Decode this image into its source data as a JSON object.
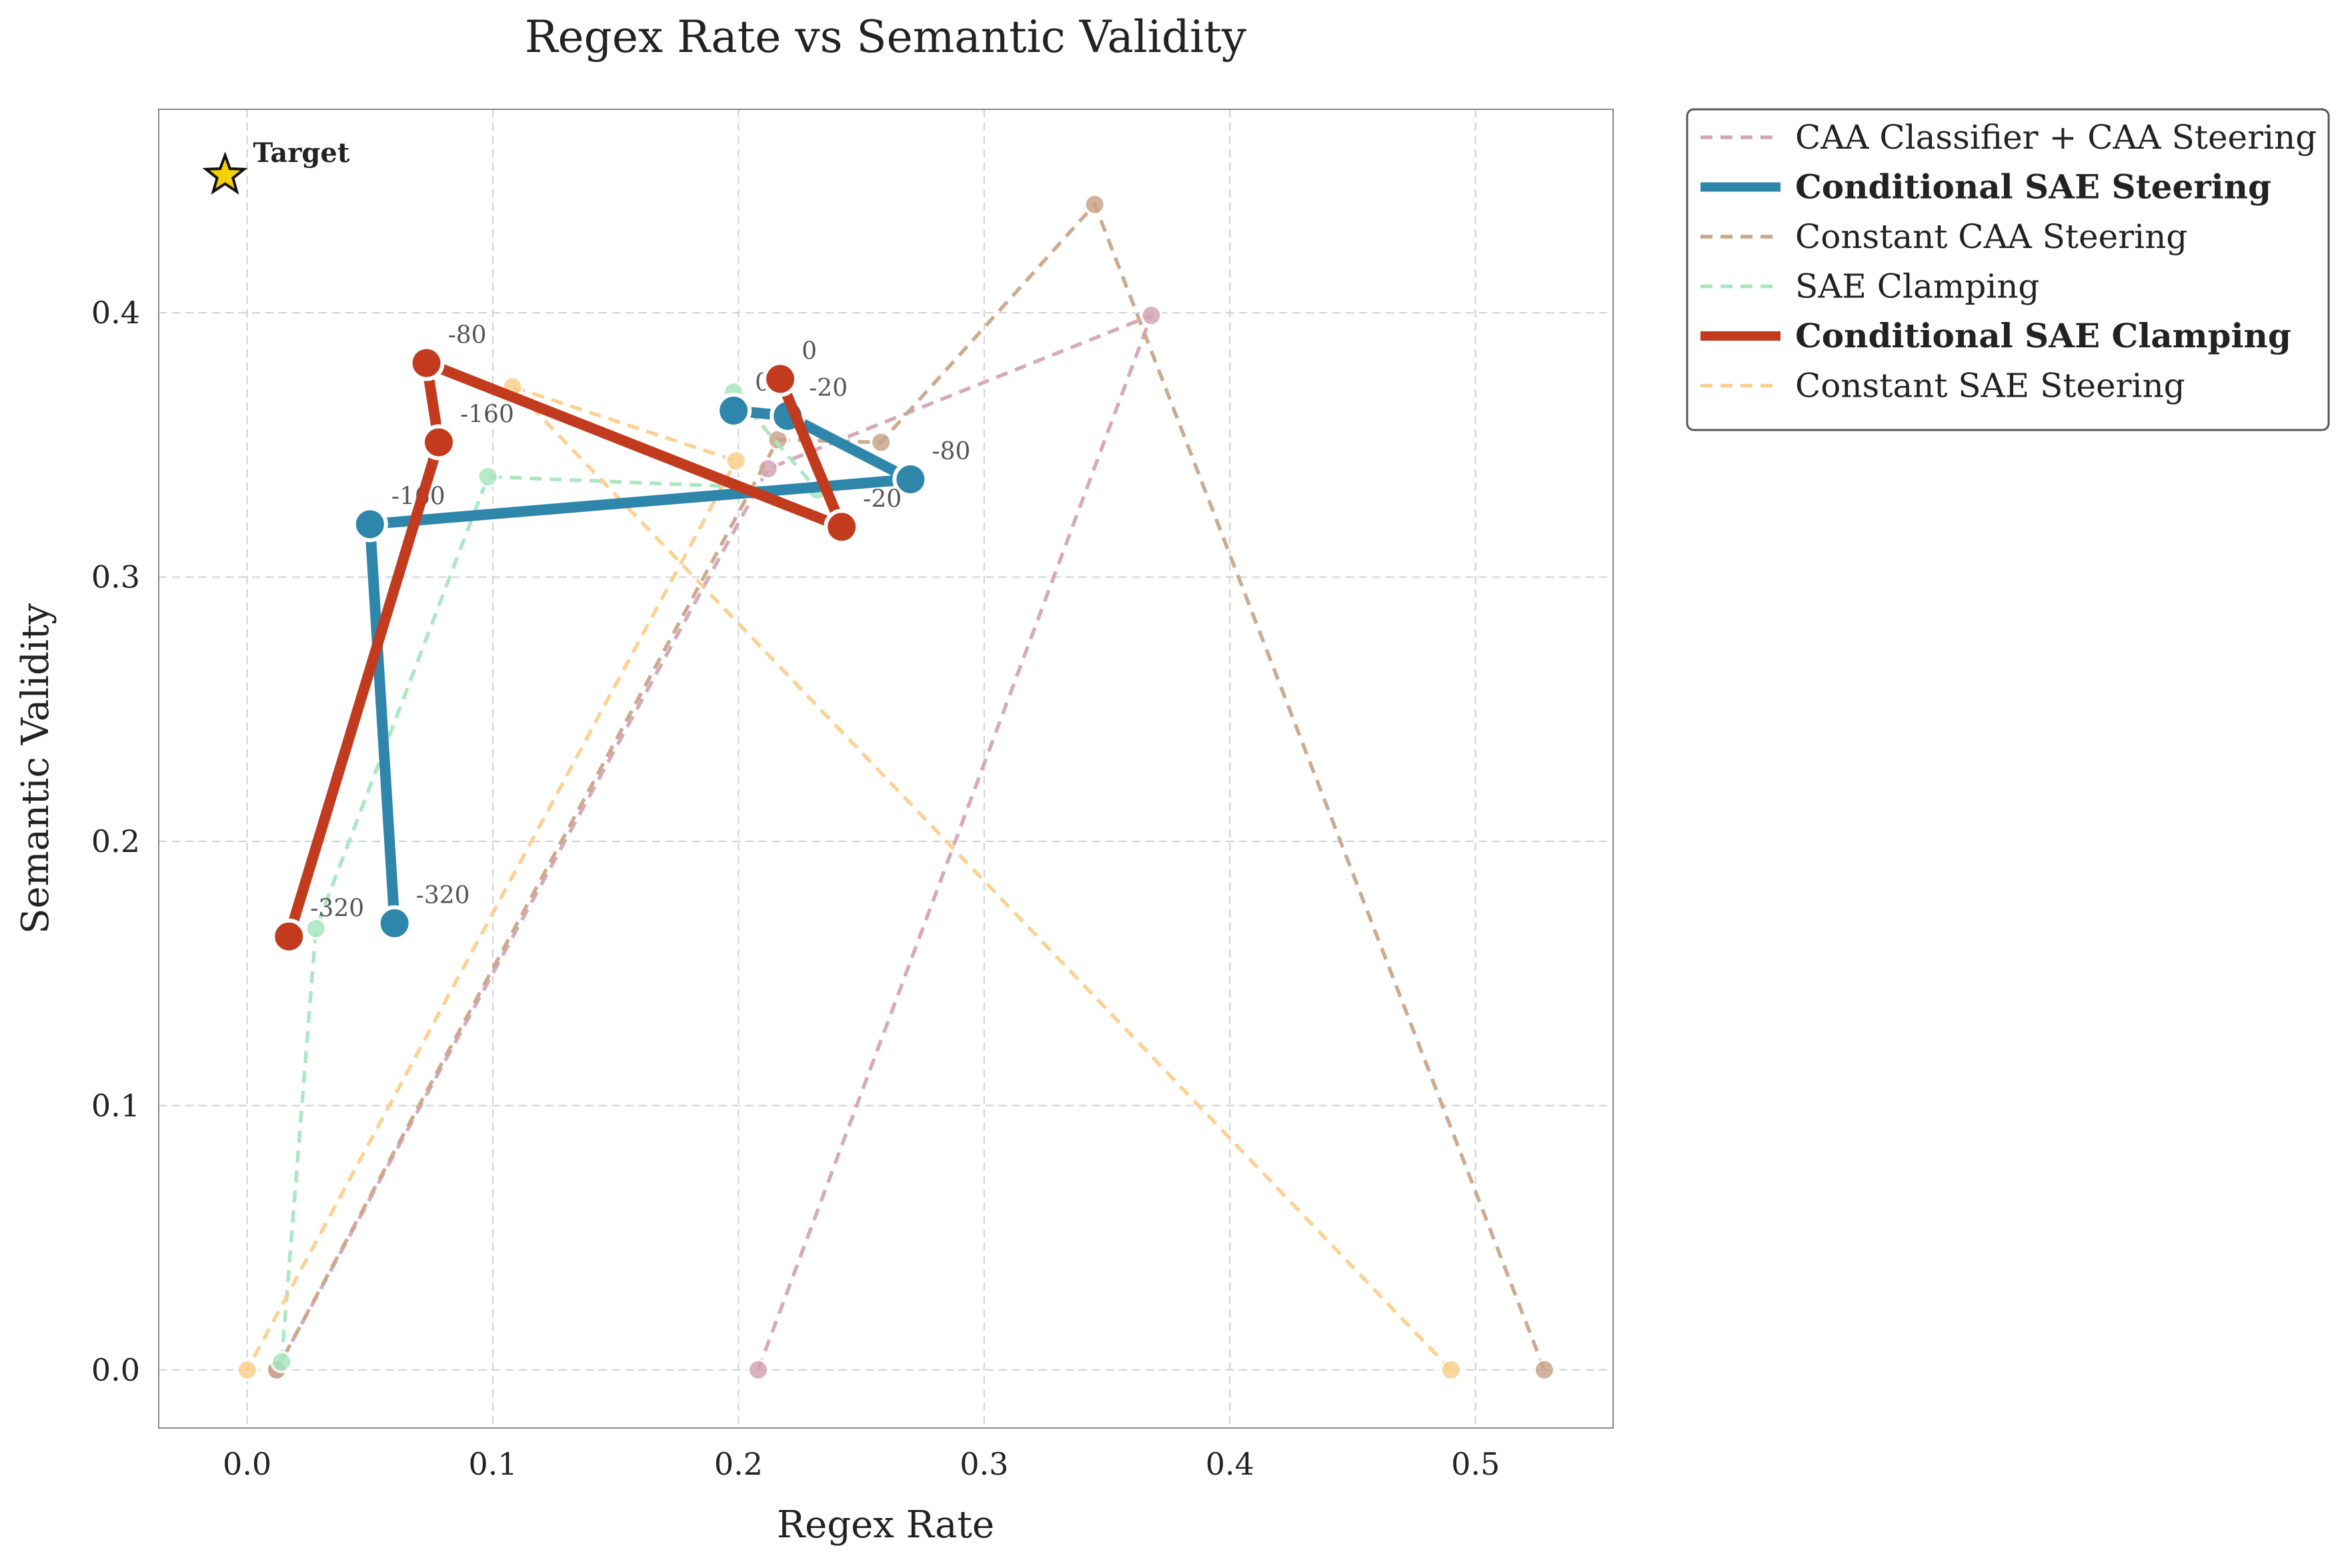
{
  "chart_data": {
    "type": "line",
    "title": "Regex Rate vs Semantic Validity",
    "xlabel": "Regex Rate",
    "ylabel": "Semantic Validity",
    "xlim": [
      -0.036,
      0.556
    ],
    "ylim": [
      -0.022,
      0.477
    ],
    "xticks": [
      "0.0",
      "0.1",
      "0.2",
      "0.3",
      "0.4",
      "0.5"
    ],
    "xtick_values": [
      0.0,
      0.1,
      0.2,
      0.3,
      0.4,
      0.5
    ],
    "yticks": [
      "0.0",
      "0.1",
      "0.2",
      "0.3",
      "0.4"
    ],
    "ytick_values": [
      0.0,
      0.1,
      0.2,
      0.3,
      0.4
    ],
    "grid": true,
    "legend_position": "outside-top-right",
    "target": {
      "label": "Target",
      "x": -0.009,
      "y": 0.452,
      "color": "#f5d000"
    },
    "series": [
      {
        "name": "CAA Classifier + CAA Steering",
        "style": "dashed",
        "emphasis": false,
        "color": "#d4a5b8",
        "x": [
          0.208,
          0.368,
          0.212,
          0.012
        ],
        "y": [
          0.0,
          0.399,
          0.341,
          0.0
        ],
        "labels": [
          "",
          "",
          "",
          ""
        ]
      },
      {
        "name": "Conditional SAE Steering",
        "style": "solid",
        "emphasis": true,
        "color": "#2e86ab",
        "x": [
          0.06,
          0.05,
          0.27,
          0.22,
          0.198
        ],
        "y": [
          0.169,
          0.32,
          0.337,
          0.361,
          0.363
        ],
        "labels": [
          "-320",
          "-160",
          "-80",
          "-20",
          "0"
        ]
      },
      {
        "name": "Constant CAA Steering",
        "style": "dashed",
        "emphasis": false,
        "color": "#c9a68a",
        "x": [
          0.528,
          0.345,
          0.258,
          0.216,
          0.012
        ],
        "y": [
          0.0,
          0.441,
          0.351,
          0.352,
          0.0
        ],
        "labels": [
          "",
          "",
          "",
          "",
          ""
        ]
      },
      {
        "name": "SAE Clamping",
        "style": "dashed",
        "emphasis": false,
        "color": "#a8e6c0",
        "x": [
          0.014,
          0.028,
          0.098,
          0.232,
          0.198
        ],
        "y": [
          0.003,
          0.167,
          0.338,
          0.333,
          0.37
        ],
        "labels": [
          "",
          "",
          "",
          "",
          ""
        ]
      },
      {
        "name": "Conditional SAE Clamping",
        "style": "solid",
        "emphasis": true,
        "color": "#c23b1f",
        "x": [
          0.017,
          0.078,
          0.073,
          0.242,
          0.217
        ],
        "y": [
          0.164,
          0.351,
          0.381,
          0.319,
          0.375
        ],
        "labels": [
          "-320",
          "-160",
          "-80",
          "-20",
          "0"
        ]
      },
      {
        "name": "Constant SAE Steering",
        "style": "dashed",
        "emphasis": false,
        "color": "#fbcf8e",
        "x": [
          0.49,
          0.108,
          0.199,
          0.0
        ],
        "y": [
          0.0,
          0.372,
          0.344,
          0.0
        ],
        "labels": [
          "",
          "",
          "",
          ""
        ]
      }
    ]
  }
}
